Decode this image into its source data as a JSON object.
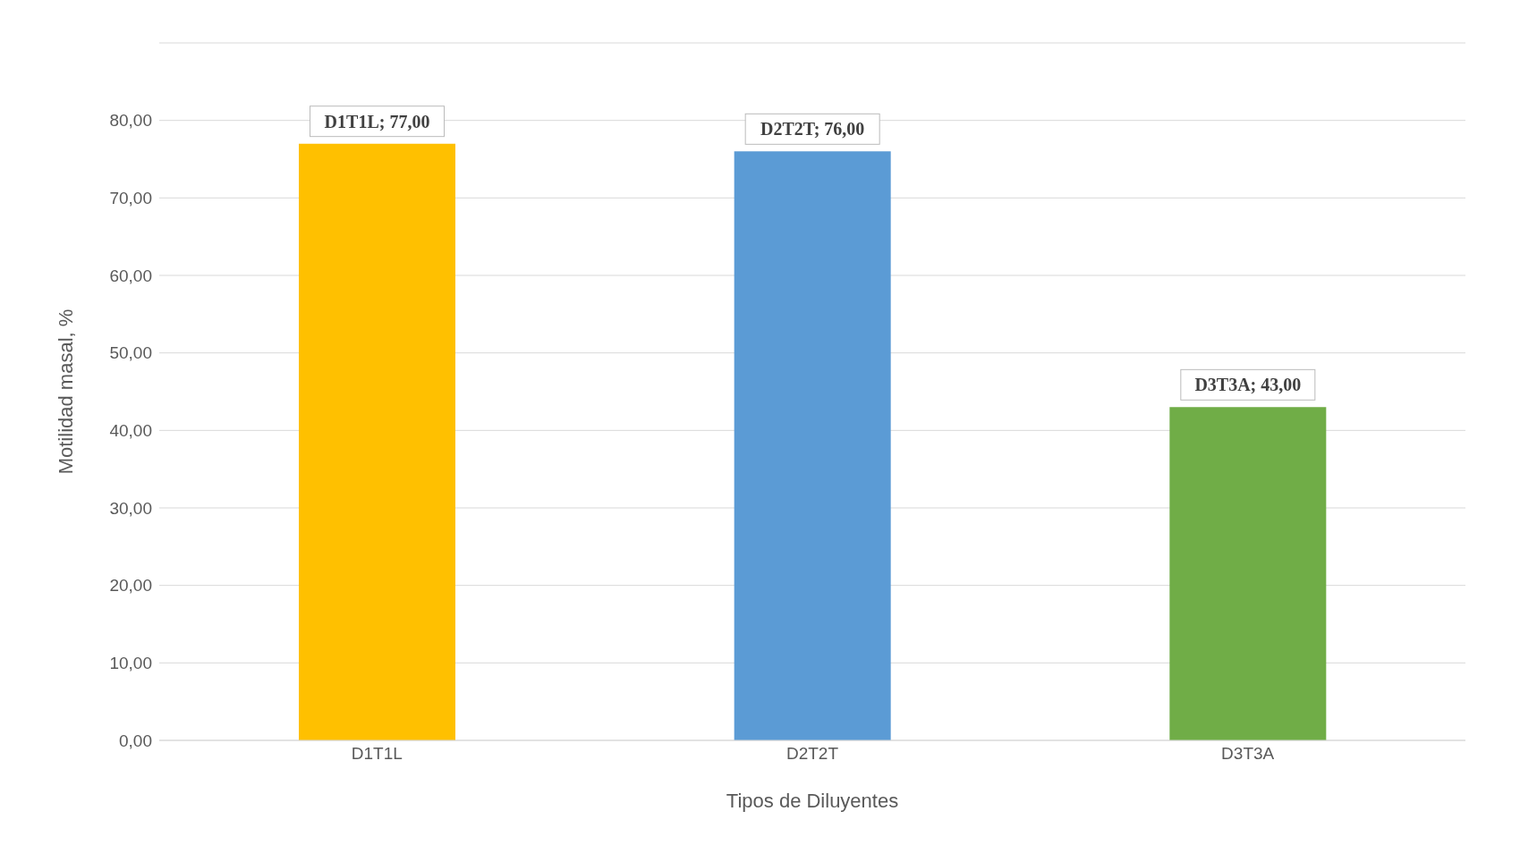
{
  "chart_data": {
    "type": "bar",
    "xlabel": "Tipos de Diluyentes",
    "ylabel": "Motilidad masal, %",
    "categories": [
      "D1T1L",
      "D2T2T",
      "D3T3A"
    ],
    "values": [
      77,
      76,
      43
    ],
    "colors": [
      "#ffc000",
      "#5b9bd5",
      "#70ad47"
    ],
    "value_labels": [
      "D1T1L; 77,00",
      "D2T2T; 76,00",
      "D3T3A; 43,00"
    ],
    "ylim": [
      0,
      90
    ],
    "yticks": [
      {
        "value": 0,
        "label": "0,00"
      },
      {
        "value": 10,
        "label": "10,00"
      },
      {
        "value": 20,
        "label": "20,00"
      },
      {
        "value": 30,
        "label": "30,00"
      },
      {
        "value": 40,
        "label": "40,00"
      },
      {
        "value": 50,
        "label": "50,00"
      },
      {
        "value": 60,
        "label": "60,00"
      },
      {
        "value": 70,
        "label": "70,00"
      },
      {
        "value": 80,
        "label": "80,00"
      },
      {
        "value": 90,
        "label": null
      }
    ],
    "grid": "y"
  }
}
